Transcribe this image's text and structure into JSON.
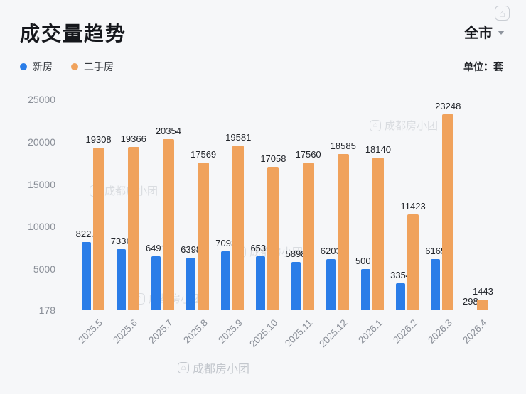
{
  "header": {
    "title": "成交量趋势",
    "region": "全市",
    "unit_label": "单位：套"
  },
  "legend": [
    {
      "label": "新房",
      "color": "#2A7DE8"
    },
    {
      "label": "二手房",
      "color": "#F0A25C"
    }
  ],
  "watermark": {
    "text": "成都房小团",
    "icon_glyph": "⌂"
  },
  "chart_data": {
    "type": "bar",
    "title": "成交量趋势",
    "unit": "套",
    "categories": [
      "2025.5",
      "2025.6",
      "2025.7",
      "2025.8",
      "2025.9",
      "2025.10",
      "2025.11",
      "2025.12",
      "2026.1",
      "2026.2",
      "2026.3",
      "2026.4"
    ],
    "series": [
      {
        "name": "新房",
        "key": "new-home",
        "color": "#2A7DE8",
        "values": [
          8227,
          7336,
          6491,
          6398,
          7093,
          6536,
          5898,
          6203,
          5007,
          3354,
          6165,
          298
        ]
      },
      {
        "name": "二手房",
        "key": "resale",
        "color": "#F0A25C",
        "values": [
          19308,
          19366,
          20354,
          17569,
          19581,
          17058,
          17560,
          18585,
          18140,
          11423,
          23248,
          1443
        ]
      }
    ],
    "ylim": [
      178,
      25000
    ],
    "yticks": [
      25000,
      20000,
      15000,
      10000,
      5000,
      178
    ],
    "grid": false,
    "legend_position": "top-left",
    "value_labels": true
  }
}
